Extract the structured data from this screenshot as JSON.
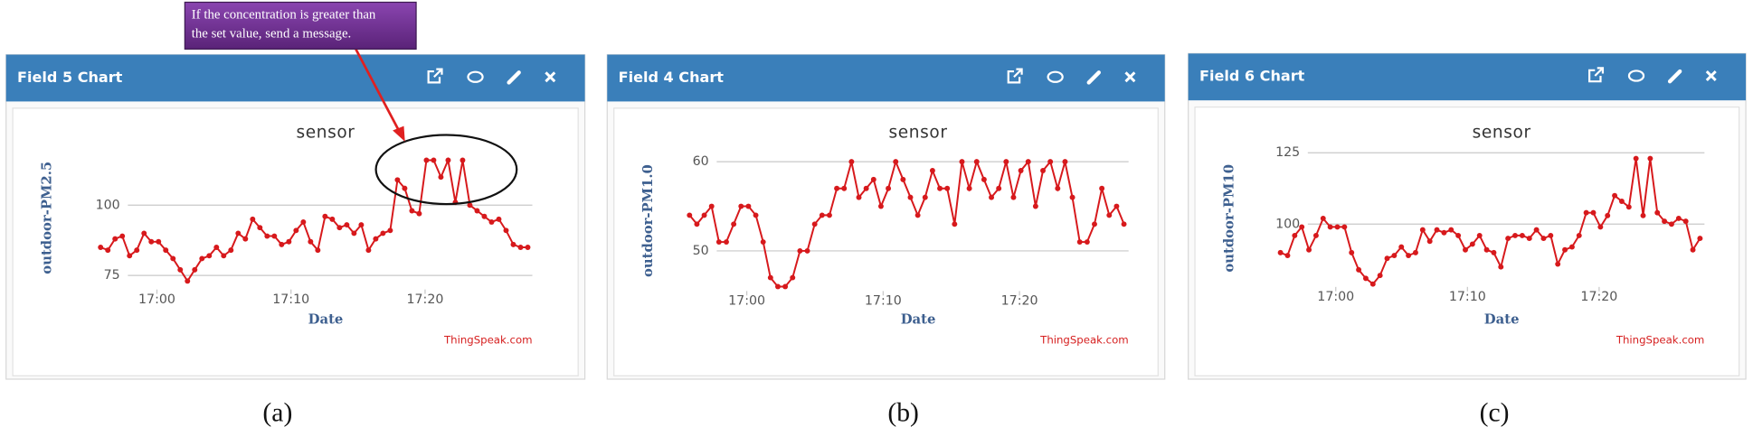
{
  "chart_data": [
    {
      "type": "line",
      "panel_title": "Field 5 Chart",
      "caption": "(a)",
      "title": "sensor",
      "x_label": "Date",
      "y_label": "outdoor-PM2.5",
      "credit": "ThingSpeak.com",
      "annotation": [
        "If the concentration is greater than",
        "the set value, send a message."
      ],
      "x": [
        1015.8,
        1016.34,
        1016.88,
        1017.42,
        1017.96,
        1018.5,
        1019.04,
        1019.58,
        1020.12,
        1020.66,
        1021.2,
        1021.74,
        1022.28,
        1022.82,
        1023.36,
        1023.9,
        1024.44,
        1024.98,
        1025.52,
        1026.06,
        1026.6,
        1027.14,
        1027.68,
        1028.22,
        1028.76,
        1029.3,
        1029.84,
        1030.38,
        1030.92,
        1031.46,
        1032,
        1032.54,
        1033.08,
        1033.62,
        1034.16,
        1034.7,
        1035.24,
        1035.78,
        1036.32,
        1036.86,
        1037.4,
        1037.94,
        1038.48,
        1039.02,
        1039.56,
        1040.1,
        1040.64,
        1041.18,
        1041.72,
        1042.26,
        1042.8,
        1043.34,
        1043.88,
        1044.42,
        1044.96,
        1045.5,
        1046.04,
        1046.58,
        1047.12,
        1047.66
      ],
      "series": [
        {
          "name": "outdoor-PM2.5",
          "color": "#d7191c",
          "values": [
            85,
            84,
            88,
            89,
            82,
            84,
            90,
            87,
            87,
            84,
            81,
            77,
            73,
            77,
            81,
            82,
            85,
            82,
            84,
            90,
            88,
            95,
            92,
            89,
            89,
            86,
            87,
            91,
            94,
            87,
            84,
            96,
            95,
            92,
            93,
            90,
            93,
            84,
            88,
            90,
            91,
            109,
            106,
            98,
            97,
            116,
            116,
            110,
            116,
            101,
            116,
            100,
            98,
            96,
            94,
            95,
            91,
            86,
            85,
            85
          ]
        }
      ],
      "xlim": [
        1015.5,
        1048
      ],
      "xticks": [
        {
          "value": 1020,
          "label": "17:00"
        },
        {
          "value": 1030,
          "label": "17:10"
        },
        {
          "value": 1040,
          "label": "17:20"
        }
      ],
      "ylim": [
        70,
        125
      ],
      "yticks": [
        75,
        100
      ],
      "grid": true
    },
    {
      "type": "line",
      "panel_title": "Field 4 Chart",
      "caption": "(b)",
      "title": "sensor",
      "x_label": "Date",
      "y_label": "outdoor-PM1.0",
      "credit": "ThingSpeak.com",
      "x": [
        1015.8,
        1016.34,
        1016.88,
        1017.42,
        1017.96,
        1018.5,
        1019.04,
        1019.58,
        1020.12,
        1020.66,
        1021.2,
        1021.74,
        1022.28,
        1022.82,
        1023.36,
        1023.9,
        1024.44,
        1024.98,
        1025.52,
        1026.06,
        1026.6,
        1027.14,
        1027.68,
        1028.22,
        1028.76,
        1029.3,
        1029.84,
        1030.38,
        1030.92,
        1031.46,
        1032,
        1032.54,
        1033.08,
        1033.62,
        1034.16,
        1034.7,
        1035.24,
        1035.78,
        1036.32,
        1036.86,
        1037.4,
        1037.94,
        1038.48,
        1039.02,
        1039.56,
        1040.1,
        1040.64,
        1041.18,
        1041.72,
        1042.26,
        1042.8,
        1043.34,
        1043.88,
        1044.42,
        1044.96,
        1045.5,
        1046.04,
        1046.58,
        1047.12,
        1047.66
      ],
      "series": [
        {
          "name": "outdoor-PM1.0",
          "color": "#d7191c",
          "values": [
            54,
            53,
            54,
            55,
            51,
            51,
            53,
            55,
            55,
            54,
            51,
            47,
            46,
            46,
            47,
            50,
            50,
            53,
            54,
            54,
            57,
            57,
            60,
            56,
            57,
            58,
            55,
            57,
            60,
            58,
            56,
            54,
            56,
            59,
            57,
            57,
            53,
            60,
            57,
            60,
            58,
            56,
            57,
            60,
            56,
            59,
            60,
            55,
            59,
            60,
            57,
            60,
            56,
            51,
            51,
            53,
            57,
            54,
            55,
            53
          ]
        }
      ],
      "xlim": [
        1015.5,
        1048
      ],
      "xticks": [
        {
          "value": 1020,
          "label": "17:00"
        },
        {
          "value": 1030,
          "label": "17:10"
        },
        {
          "value": 1040,
          "label": "17:20"
        }
      ],
      "ylim": [
        45.5,
        62.5
      ],
      "yticks": [
        50,
        60
      ],
      "grid": true
    },
    {
      "type": "line",
      "panel_title": "Field 6 Chart",
      "caption": "(c)",
      "title": "sensor",
      "x_label": "Date",
      "y_label": "outdoor-PM10",
      "credit": "ThingSpeak.com",
      "x": [
        1015.8,
        1016.34,
        1016.88,
        1017.42,
        1017.96,
        1018.5,
        1019.04,
        1019.58,
        1020.12,
        1020.66,
        1021.2,
        1021.74,
        1022.28,
        1022.82,
        1023.36,
        1023.9,
        1024.44,
        1024.98,
        1025.52,
        1026.06,
        1026.6,
        1027.14,
        1027.68,
        1028.22,
        1028.76,
        1029.3,
        1029.84,
        1030.38,
        1030.92,
        1031.46,
        1032,
        1032.54,
        1033.08,
        1033.62,
        1034.16,
        1034.7,
        1035.24,
        1035.78,
        1036.32,
        1036.86,
        1037.4,
        1037.94,
        1038.48,
        1039.02,
        1039.56,
        1040.1,
        1040.64,
        1041.18,
        1041.72,
        1042.26,
        1042.8,
        1043.34,
        1043.88,
        1044.42,
        1044.96,
        1045.5,
        1046.04,
        1046.58,
        1047.12,
        1047.66
      ],
      "series": [
        {
          "name": "outdoor-PM10",
          "color": "#d7191c",
          "values": [
            90,
            89,
            96,
            99,
            91,
            96,
            102,
            99,
            99,
            99,
            90,
            84,
            81,
            79,
            82,
            88,
            89,
            92,
            89,
            90,
            98,
            94,
            98,
            97,
            98,
            96,
            91,
            93,
            96,
            91,
            90,
            85,
            95,
            96,
            96,
            95,
            98,
            95,
            96,
            86,
            91,
            92,
            96,
            104,
            104,
            99,
            103,
            110,
            108,
            106,
            123,
            103,
            123,
            104,
            101,
            100,
            102,
            101,
            91,
            95
          ]
        }
      ],
      "xlim": [
        1015.5,
        1048
      ],
      "xticks": [
        {
          "value": 1020,
          "label": "17:00"
        },
        {
          "value": 1030,
          "label": "17:10"
        },
        {
          "value": 1040,
          "label": "17:20"
        }
      ],
      "ylim": [
        78,
        130
      ],
      "yticks": [
        100,
        125
      ],
      "grid": true
    }
  ]
}
